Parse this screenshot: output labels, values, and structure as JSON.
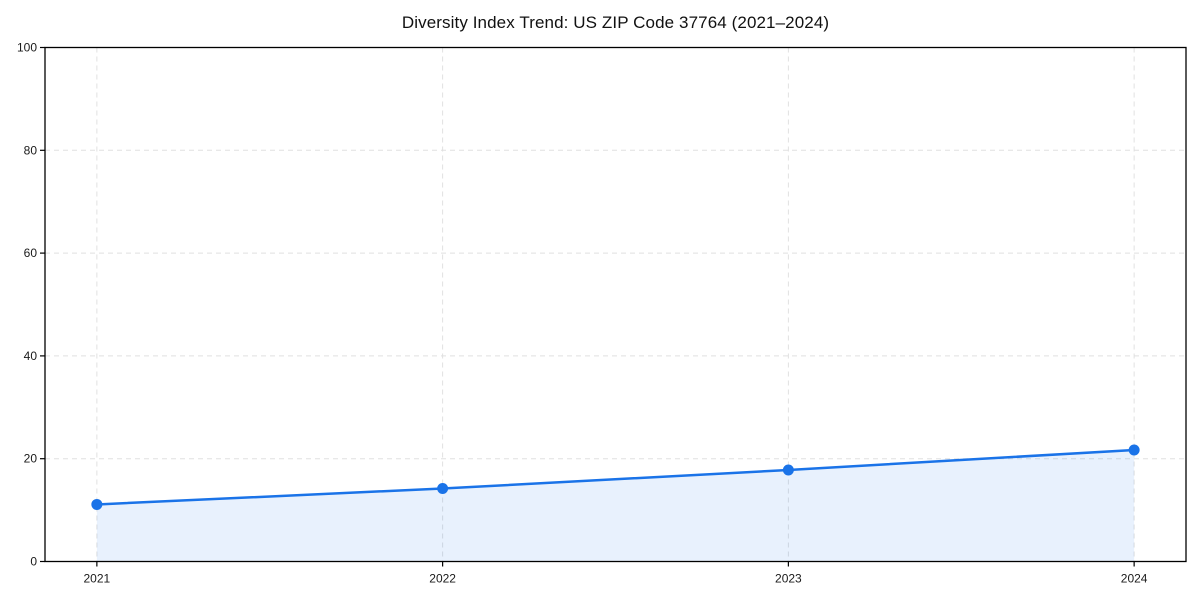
{
  "chart_data": {
    "type": "area",
    "title": "Diversity Index Trend: US ZIP Code 37764 (2021–2024)",
    "categories": [
      "2021",
      "2022",
      "2023",
      "2024"
    ],
    "series": [
      {
        "name": "Diversity Index",
        "values": [
          11.1,
          14.2,
          17.8,
          21.7
        ]
      }
    ],
    "xlabel": "",
    "ylabel": "",
    "ylim": [
      0,
      100
    ],
    "y_ticks": [
      0,
      20,
      40,
      60,
      80,
      100
    ],
    "grid": true,
    "grid_style": "dashed",
    "legend": false,
    "colors": {
      "line": "#1a73e8",
      "marker": "#1a73e8",
      "fill": "#1a73e8",
      "fill_opacity": 0.1,
      "grid": "#e0e0e0",
      "spine": "#000000",
      "tick_label": "#1a1a1a",
      "title": "#111111",
      "background": "#ffffff"
    }
  }
}
